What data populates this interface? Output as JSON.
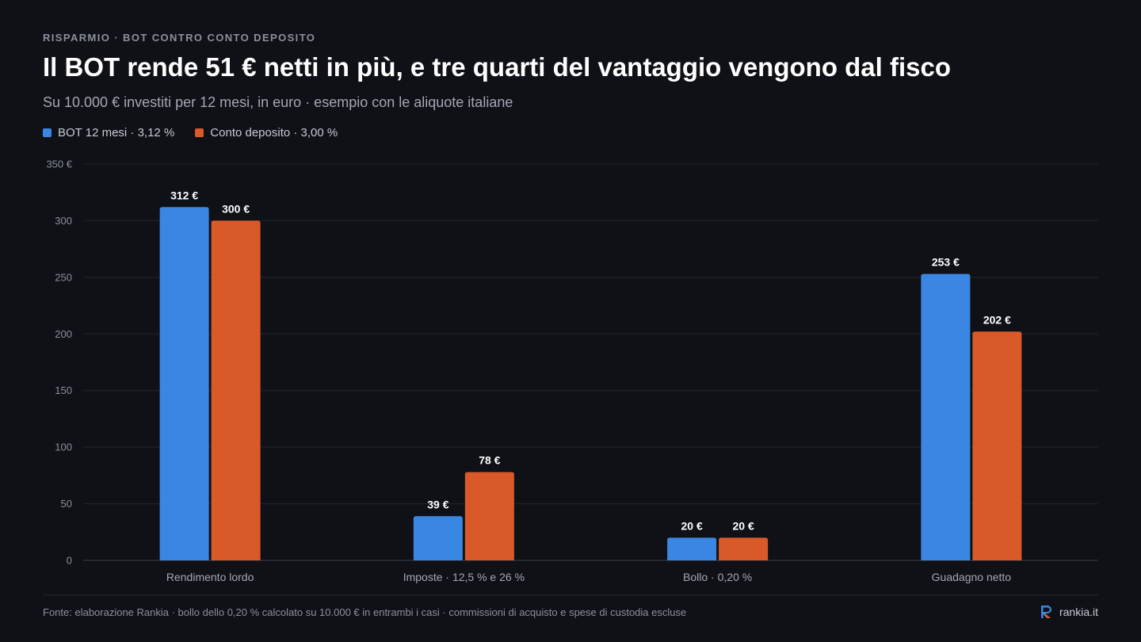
{
  "eyebrow": "RISPARMIO · BOT CONTRO CONTO DEPOSITO",
  "title": "Il BOT rende 51 € netti in più, e tre quarti del vantaggio vengono dal fisco",
  "subtitle": "Su 10.000 € investiti per 12 mesi, in euro · esempio con le aliquote italiane",
  "footnote": "Fonte: elaborazione Rankia · bollo dello 0,20 % calcolato su 10.000 € in entrambi i casi · commissioni di acquisto e spese di custodia escluse",
  "brand": {
    "name": "rankia.it",
    "icon": "rankia-logo-icon"
  },
  "colors": {
    "bot": "#3a87e3",
    "deposito": "#d95a28",
    "background": "#0f1117"
  },
  "chart_data": {
    "type": "bar",
    "categories": [
      "Rendimento lordo",
      "Imposte · 12,5 % e 26 %",
      "Bollo · 0,20 %",
      "Guadagno netto"
    ],
    "series": [
      {
        "name": "BOT 12 mesi · 3,12 %",
        "values": [
          312,
          39,
          20,
          253
        ],
        "labels": [
          "312 €",
          "39 €",
          "20 €",
          "253 €"
        ],
        "color": "#3a87e3"
      },
      {
        "name": "Conto deposito · 3,00 %",
        "values": [
          300,
          78,
          20,
          202
        ],
        "labels": [
          "300 €",
          "78 €",
          "20 €",
          "202 €"
        ],
        "color": "#d95a28"
      }
    ],
    "ylim": [
      0,
      350
    ],
    "yticks": [
      {
        "value": 0,
        "label": "0"
      },
      {
        "value": 50,
        "label": "50"
      },
      {
        "value": 100,
        "label": "100"
      },
      {
        "value": 150,
        "label": "150"
      },
      {
        "value": 200,
        "label": "200"
      },
      {
        "value": 250,
        "label": "250"
      },
      {
        "value": 300,
        "label": "300"
      },
      {
        "value": 350,
        "label": "350 €"
      }
    ],
    "grid": true,
    "legend": "top-left"
  }
}
